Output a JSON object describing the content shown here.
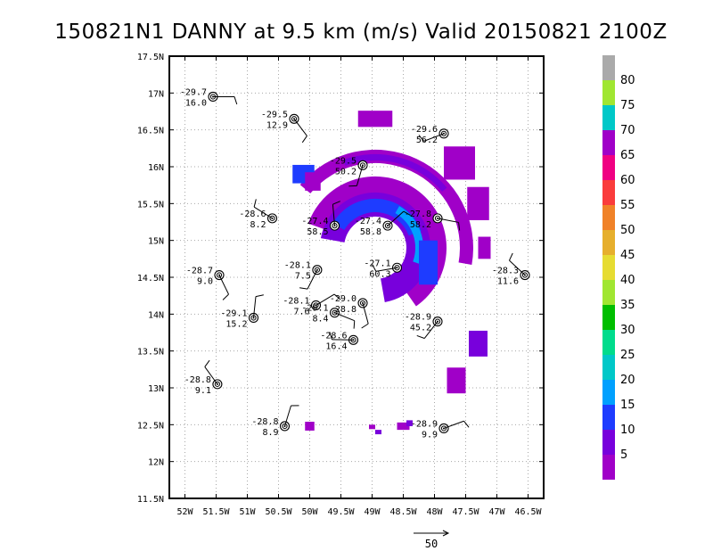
{
  "title": "150821N1 DANNY at 9.5 km (m/s) Valid 20150821 2100Z",
  "chart_data": {
    "type": "heatmap",
    "title": "150821N1 DANNY at 9.5 km (m/s) Valid 20150821 2100Z",
    "xlim": [
      -52.25,
      -46.25
    ],
    "ylim": [
      11.5,
      17.5
    ],
    "grid": true,
    "x_ticks": [
      {
        "v": -52,
        "label": "52W"
      },
      {
        "v": -51.5,
        "label": "51.5W"
      },
      {
        "v": -51,
        "label": "51W"
      },
      {
        "v": -50.5,
        "label": "50.5W"
      },
      {
        "v": -50,
        "label": "50W"
      },
      {
        "v": -49.5,
        "label": "49.5W"
      },
      {
        "v": -49,
        "label": "49W"
      },
      {
        "v": -48.5,
        "label": "48.5W"
      },
      {
        "v": -48,
        "label": "48W"
      },
      {
        "v": -47.5,
        "label": "47.5W"
      },
      {
        "v": -47,
        "label": "47W"
      },
      {
        "v": -46.5,
        "label": "46.5W"
      }
    ],
    "y_ticks": [
      {
        "v": 11.5,
        "label": "11.5N"
      },
      {
        "v": 12,
        "label": "12N"
      },
      {
        "v": 12.5,
        "label": "12.5N"
      },
      {
        "v": 13,
        "label": "13N"
      },
      {
        "v": 13.5,
        "label": "13.5N"
      },
      {
        "v": 14,
        "label": "14N"
      },
      {
        "v": 14.5,
        "label": "14.5N"
      },
      {
        "v": 15,
        "label": "15N"
      },
      {
        "v": 15.5,
        "label": "15.5N"
      },
      {
        "v": 16,
        "label": "16N"
      },
      {
        "v": 16.5,
        "label": "16.5N"
      },
      {
        "v": 17,
        "label": "17N"
      },
      {
        "v": 17.5,
        "label": "17.5N"
      }
    ],
    "colorbar": {
      "labels": [
        "5",
        "10",
        "15",
        "20",
        "25",
        "30",
        "35",
        "40",
        "45",
        "50",
        "55",
        "60",
        "65",
        "70",
        "75",
        "80"
      ],
      "colors": [
        "#a000c8",
        "#7800dc",
        "#1e3cff",
        "#00a0ff",
        "#00c8c8",
        "#00dc8c",
        "#00be00",
        "#a0e632",
        "#e6dc32",
        "#e6af2d",
        "#f08228",
        "#fa3c3c",
        "#f00082",
        "#a000c8",
        "#00c8c8",
        "#a0e632",
        "#aaaaaa"
      ]
    },
    "wind_arrow_reference": "50",
    "stations": [
      {
        "lon": -51.55,
        "lat": 16.95,
        "temp": "-29.7",
        "wind": "16.0"
      },
      {
        "lon": -50.25,
        "lat": 16.65,
        "temp": "-29.5",
        "wind": "12.9"
      },
      {
        "lon": -49.15,
        "lat": 16.02,
        "temp": "-29.5",
        "wind": "50.2"
      },
      {
        "lon": -47.85,
        "lat": 16.45,
        "temp": "-29.6",
        "wind": "56.2"
      },
      {
        "lon": -50.6,
        "lat": 15.3,
        "temp": "-28.6",
        "wind": "8.2"
      },
      {
        "lon": -49.6,
        "lat": 15.2,
        "temp": "-27.4",
        "wind": "58.5"
      },
      {
        "lon": -48.75,
        "lat": 15.2,
        "temp": "-27.4",
        "wind": "58.8"
      },
      {
        "lon": -47.95,
        "lat": 15.3,
        "temp": "-27.8",
        "wind": "58.2"
      },
      {
        "lon": -51.45,
        "lat": 14.53,
        "temp": "-28.7",
        "wind": "9.0"
      },
      {
        "lon": -49.88,
        "lat": 14.6,
        "temp": "-28.1",
        "wind": "7.5"
      },
      {
        "lon": -48.6,
        "lat": 14.63,
        "temp": "-27.1",
        "wind": "60.3"
      },
      {
        "lon": -46.55,
        "lat": 14.53,
        "temp": "-28.3",
        "wind": "11.6"
      },
      {
        "lon": -50.9,
        "lat": 13.95,
        "temp": "-29.1",
        "wind": "15.2"
      },
      {
        "lon": -49.9,
        "lat": 14.12,
        "temp": "-28.1",
        "wind": "7.6"
      },
      {
        "lon": -49.6,
        "lat": 14.02,
        "temp": "-29.1",
        "wind": "8.4"
      },
      {
        "lon": -49.15,
        "lat": 14.15,
        "temp": "-29.0",
        "wind": "28.8"
      },
      {
        "lon": -47.95,
        "lat": 13.9,
        "temp": "-28.9",
        "wind": "45.2"
      },
      {
        "lon": -49.3,
        "lat": 13.65,
        "temp": "-28.6",
        "wind": "16.4"
      },
      {
        "lon": -51.48,
        "lat": 13.05,
        "temp": "-28.8",
        "wind": "9.1"
      },
      {
        "lon": -50.4,
        "lat": 12.48,
        "temp": "-28.8",
        "wind": "8.9"
      },
      {
        "lon": -47.85,
        "lat": 12.45,
        "temp": "-28.9",
        "wind": "9.9"
      }
    ]
  }
}
